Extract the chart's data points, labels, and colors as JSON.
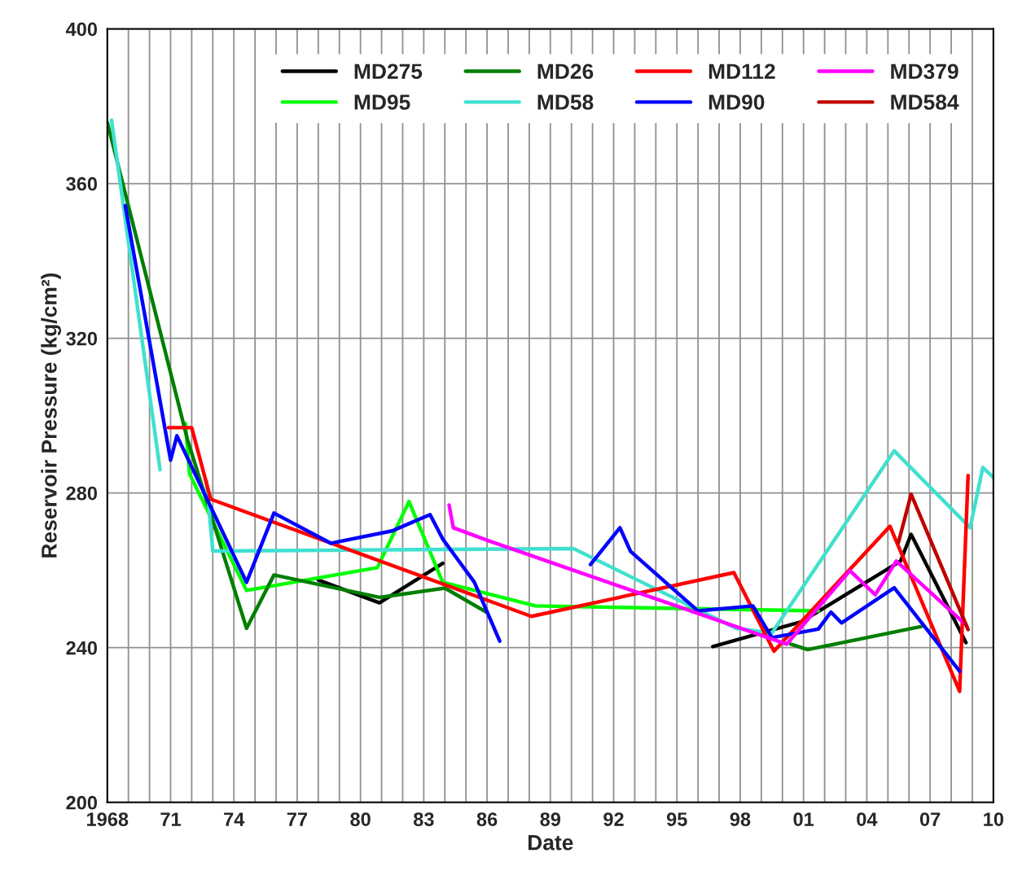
{
  "chart_data": {
    "type": "line",
    "xlabel": "Date",
    "ylabel": "Reservoir Pressure (kg/cm²)",
    "xlim": [
      1968,
      2010
    ],
    "ylim": [
      200,
      400
    ],
    "xticks": [
      {
        "value": 1968,
        "label": "1968"
      },
      {
        "value": 1969,
        "label": null
      },
      {
        "value": 1970,
        "label": null
      },
      {
        "value": 1971,
        "label": "71"
      },
      {
        "value": 1972,
        "label": null
      },
      {
        "value": 1973,
        "label": null
      },
      {
        "value": 1974,
        "label": "74"
      },
      {
        "value": 1975,
        "label": null
      },
      {
        "value": 1976,
        "label": null
      },
      {
        "value": 1977,
        "label": "77"
      },
      {
        "value": 1978,
        "label": null
      },
      {
        "value": 1979,
        "label": null
      },
      {
        "value": 1980,
        "label": "80"
      },
      {
        "value": 1981,
        "label": null
      },
      {
        "value": 1982,
        "label": null
      },
      {
        "value": 1983,
        "label": "83"
      },
      {
        "value": 1984,
        "label": null
      },
      {
        "value": 1985,
        "label": null
      },
      {
        "value": 1986,
        "label": "86"
      },
      {
        "value": 1987,
        "label": null
      },
      {
        "value": 1988,
        "label": null
      },
      {
        "value": 1989,
        "label": "89"
      },
      {
        "value": 1990,
        "label": null
      },
      {
        "value": 1991,
        "label": null
      },
      {
        "value": 1992,
        "label": "92"
      },
      {
        "value": 1993,
        "label": null
      },
      {
        "value": 1994,
        "label": null
      },
      {
        "value": 1995,
        "label": "95"
      },
      {
        "value": 1996,
        "label": null
      },
      {
        "value": 1997,
        "label": null
      },
      {
        "value": 1998,
        "label": "98"
      },
      {
        "value": 1999,
        "label": null
      },
      {
        "value": 2000,
        "label": null
      },
      {
        "value": 2001,
        "label": "01"
      },
      {
        "value": 2002,
        "label": null
      },
      {
        "value": 2003,
        "label": null
      },
      {
        "value": 2004,
        "label": "04"
      },
      {
        "value": 2005,
        "label": null
      },
      {
        "value": 2006,
        "label": null
      },
      {
        "value": 2007,
        "label": "07"
      },
      {
        "value": 2008,
        "label": null
      },
      {
        "value": 2009,
        "label": null
      },
      {
        "value": 2010,
        "label": "10"
      }
    ],
    "yticks": [
      200,
      240,
      280,
      320,
      360,
      400
    ],
    "grid": true,
    "legend": "top right",
    "marker": "none",
    "line_style": "solid",
    "series": [
      {
        "name": "MD275",
        "color": "#000000",
        "x": [
          1978.0,
          1980.9,
          1983.9,
          null,
          1996.7,
          2000.9,
          2005.6,
          2006.1,
          2008.7
        ],
        "values": [
          257.5,
          251.6,
          261.8,
          null,
          240.3,
          246.7,
          262.4,
          269.3,
          241.3
        ]
      },
      {
        "name": "MD95",
        "color": "#00ff00",
        "x": [
          1971.7,
          1971.9,
          1974.6,
          1980.8,
          1982.3,
          1983.9,
          1988.3,
          2001.7
        ],
        "values": [
          298.0,
          284.9,
          254.8,
          260.7,
          277.8,
          256.9,
          250.8,
          249.5
        ]
      },
      {
        "name": "MD26",
        "color": "#007f00",
        "x": [
          1968.0,
          1971.8,
          1974.6,
          1975.9,
          1980.9,
          1984.0,
          1986.0,
          null,
          2000.4,
          2001.2,
          2006.6
        ],
        "values": [
          375.8,
          293.8,
          245.0,
          258.8,
          253.0,
          255.4,
          249.1,
          null,
          240.9,
          239.5,
          245.5
        ]
      },
      {
        "name": "MD58",
        "color": "#40e0d0",
        "x": [
          1968.2,
          1970.5,
          null,
          1972.7,
          1973.0,
          1990.1,
          1997.8,
          1999.5,
          2005.3,
          2008.9,
          2009.5,
          2010.0
        ],
        "values": [
          376.4,
          286.0,
          null,
          283.0,
          265.0,
          265.6,
          245.0,
          243.8,
          290.9,
          271.0,
          286.6,
          284.0
        ]
      },
      {
        "name": "MD112",
        "color": "#ff0000",
        "x": [
          1970.9,
          1972.0,
          1972.9,
          1988.1,
          1997.7,
          1999.6,
          2005.1,
          2008.4,
          2008.8
        ],
        "values": [
          296.9,
          296.9,
          278.4,
          248.1,
          259.4,
          239.1,
          271.4,
          228.7,
          284.5
        ]
      },
      {
        "name": "MD90",
        "color": "#0000ff",
        "x": [
          1968.85,
          1971.0,
          1971.3,
          1974.6,
          1975.9,
          1978.6,
          1981.5,
          1983.3,
          1983.9,
          1985.4,
          1986.6,
          null,
          1990.9,
          1992.3,
          1992.8,
          1996.0,
          1998.6,
          1999.5,
          2001.7,
          2002.3,
          2002.8,
          2005.3,
          2008.4
        ],
        "values": [
          354.3,
          288.5,
          294.8,
          256.9,
          274.8,
          267.0,
          270.2,
          274.4,
          268.1,
          256.9,
          241.7,
          null,
          261.5,
          271.0,
          264.9,
          249.5,
          250.8,
          242.6,
          244.8,
          249.2,
          246.4,
          255.5,
          233.9
        ]
      },
      {
        "name": "MD379",
        "color": "#ff00ff",
        "x": [
          1984.2,
          1984.4,
          1986.1,
          2000.2,
          2003.2,
          2004.4,
          2005.4,
          2008.7
        ],
        "values": [
          276.9,
          271.0,
          267.6,
          240.9,
          259.9,
          253.7,
          262.4,
          245.9
        ]
      },
      {
        "name": "MD584",
        "color": "#c00000",
        "x": [
          2005.5,
          2006.1,
          2008.8
        ],
        "values": [
          267.2,
          279.7,
          244.7
        ]
      }
    ]
  }
}
